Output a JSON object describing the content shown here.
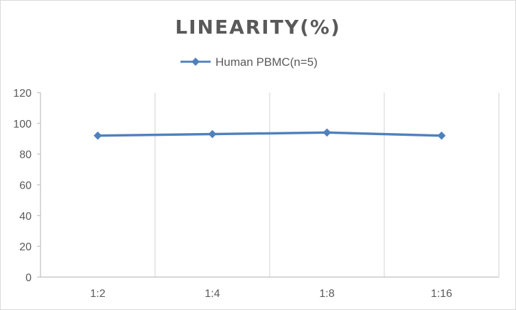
{
  "chart_data": {
    "type": "line",
    "title": "LINEARITY(%)",
    "xlabel": "",
    "ylabel": "",
    "categories": [
      "1:2",
      "1:4",
      "1:8",
      "1:16"
    ],
    "series": [
      {
        "name": "Human PBMC(n=5)",
        "values": [
          92,
          93,
          94,
          92
        ],
        "color": "#4f81bd",
        "marker": "diamond"
      }
    ],
    "ylim": [
      0,
      120
    ],
    "yticks": [
      0,
      20,
      40,
      60,
      80,
      100,
      120
    ],
    "grid": "vertical",
    "legend": "top"
  }
}
